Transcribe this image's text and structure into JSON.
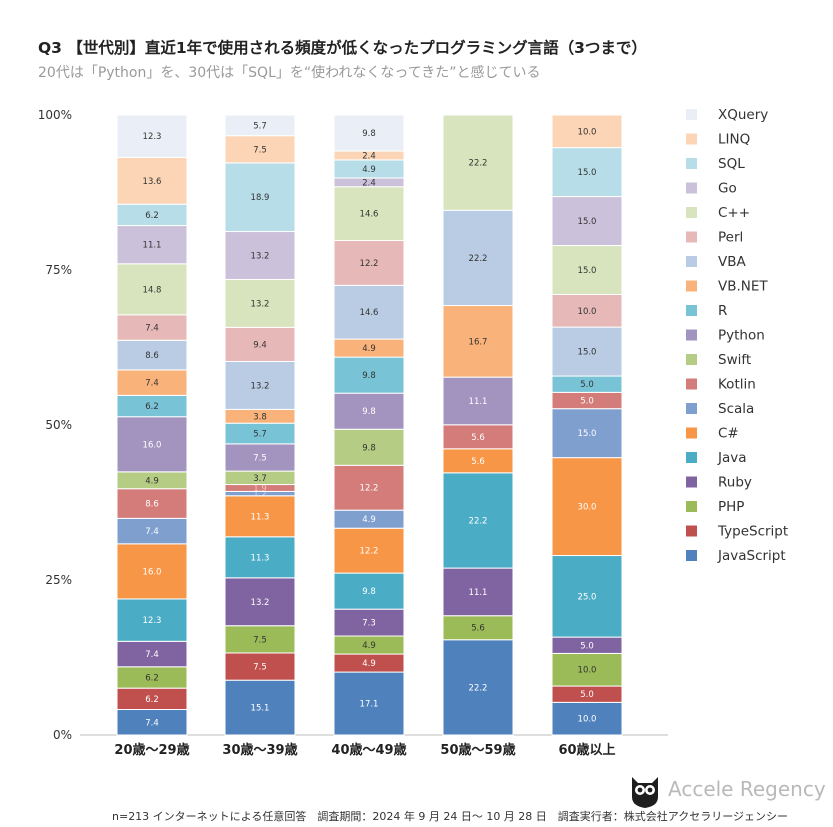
{
  "title": "Q3 【世代別】直近1年で使用される頻度が低くなったプログラミング言語（3つまで）",
  "subtitle": "20代は「Python」を、30代は「SQL」を“使われなくなってきた”と感じている",
  "footer": "n=213 インターネットによる任意回答　調査期間：2024 年 9 月 24 日〜 10 月 28 日　調査実行者：株式会社アクセラリージェンシー",
  "brand": "Accele Regency",
  "colors": {
    "JavaScript": "#4f81bd",
    "TypeScript": "#c0504d",
    "PHP": "#9bbb59",
    "Ruby": "#8064a2",
    "Java": "#4bacc6",
    "C#": "#f79646",
    "Scala": "#7f9fcf",
    "Kotlin": "#d47c7a",
    "Swift": "#b5cc84",
    "Python": "#a294bf",
    "R": "#79c3d6",
    "VB.NET": "#f9b37a",
    "VBA": "#b9cce4",
    "Perl": "#e6b9b8",
    "C++": "#d7e4bd",
    "Go": "#ccc1da",
    "SQL": "#b7dee8",
    "LINQ": "#fbd5b5",
    "XQuery": "#eaeff7"
  },
  "chart_data": {
    "type": "bar",
    "stacked": "percent",
    "categories": [
      "20歳〜29歳",
      "30歳〜39歳",
      "40歳〜49歳",
      "50歳〜59歳",
      "60歳以上"
    ],
    "y_ticks": [
      "0%",
      "25%",
      "50%",
      "75%",
      "100%"
    ],
    "ylim": [
      0,
      100
    ],
    "legend_position": "right",
    "series": [
      {
        "name": "JavaScript",
        "values": [
          7.4,
          15.1,
          17.1,
          22.2,
          10.0
        ]
      },
      {
        "name": "TypeScript",
        "values": [
          6.2,
          7.5,
          4.9,
          0,
          5.0
        ]
      },
      {
        "name": "PHP",
        "values": [
          6.2,
          7.5,
          4.9,
          5.6,
          10.0
        ]
      },
      {
        "name": "Ruby",
        "values": [
          7.4,
          13.2,
          7.3,
          11.1,
          5.0
        ]
      },
      {
        "name": "Java",
        "values": [
          12.3,
          11.3,
          9.8,
          22.2,
          25.0
        ]
      },
      {
        "name": "C#",
        "values": [
          16.0,
          11.3,
          12.2,
          5.6,
          30.0
        ]
      },
      {
        "name": "Scala",
        "values": [
          7.4,
          1.2,
          4.9,
          0,
          15.0
        ]
      },
      {
        "name": "Kotlin",
        "values": [
          8.6,
          1.9,
          12.2,
          5.6,
          5.0
        ]
      },
      {
        "name": "Swift",
        "values": [
          4.9,
          3.7,
          9.8,
          0,
          0
        ]
      },
      {
        "name": "Python",
        "values": [
          16.0,
          7.5,
          9.8,
          11.1,
          0
        ]
      },
      {
        "name": "R",
        "values": [
          6.2,
          5.7,
          9.8,
          0,
          5.0
        ]
      },
      {
        "name": "VB.NET",
        "values": [
          7.4,
          3.8,
          4.9,
          16.7,
          0
        ]
      },
      {
        "name": "VBA",
        "values": [
          8.6,
          13.2,
          14.6,
          22.2,
          15.0
        ]
      },
      {
        "name": "Perl",
        "values": [
          7.4,
          9.4,
          12.2,
          0,
          10.0
        ]
      },
      {
        "name": "C++",
        "values": [
          14.8,
          13.2,
          14.6,
          22.2,
          15.0
        ]
      },
      {
        "name": "Go",
        "values": [
          11.1,
          13.2,
          2.4,
          0,
          15.0
        ]
      },
      {
        "name": "SQL",
        "values": [
          6.2,
          18.9,
          4.9,
          0,
          15.0
        ]
      },
      {
        "name": "LINQ",
        "values": [
          13.6,
          7.5,
          2.4,
          0,
          10.0
        ]
      },
      {
        "name": "XQuery",
        "values": [
          12.3,
          5.7,
          9.8,
          0,
          0
        ]
      }
    ]
  }
}
